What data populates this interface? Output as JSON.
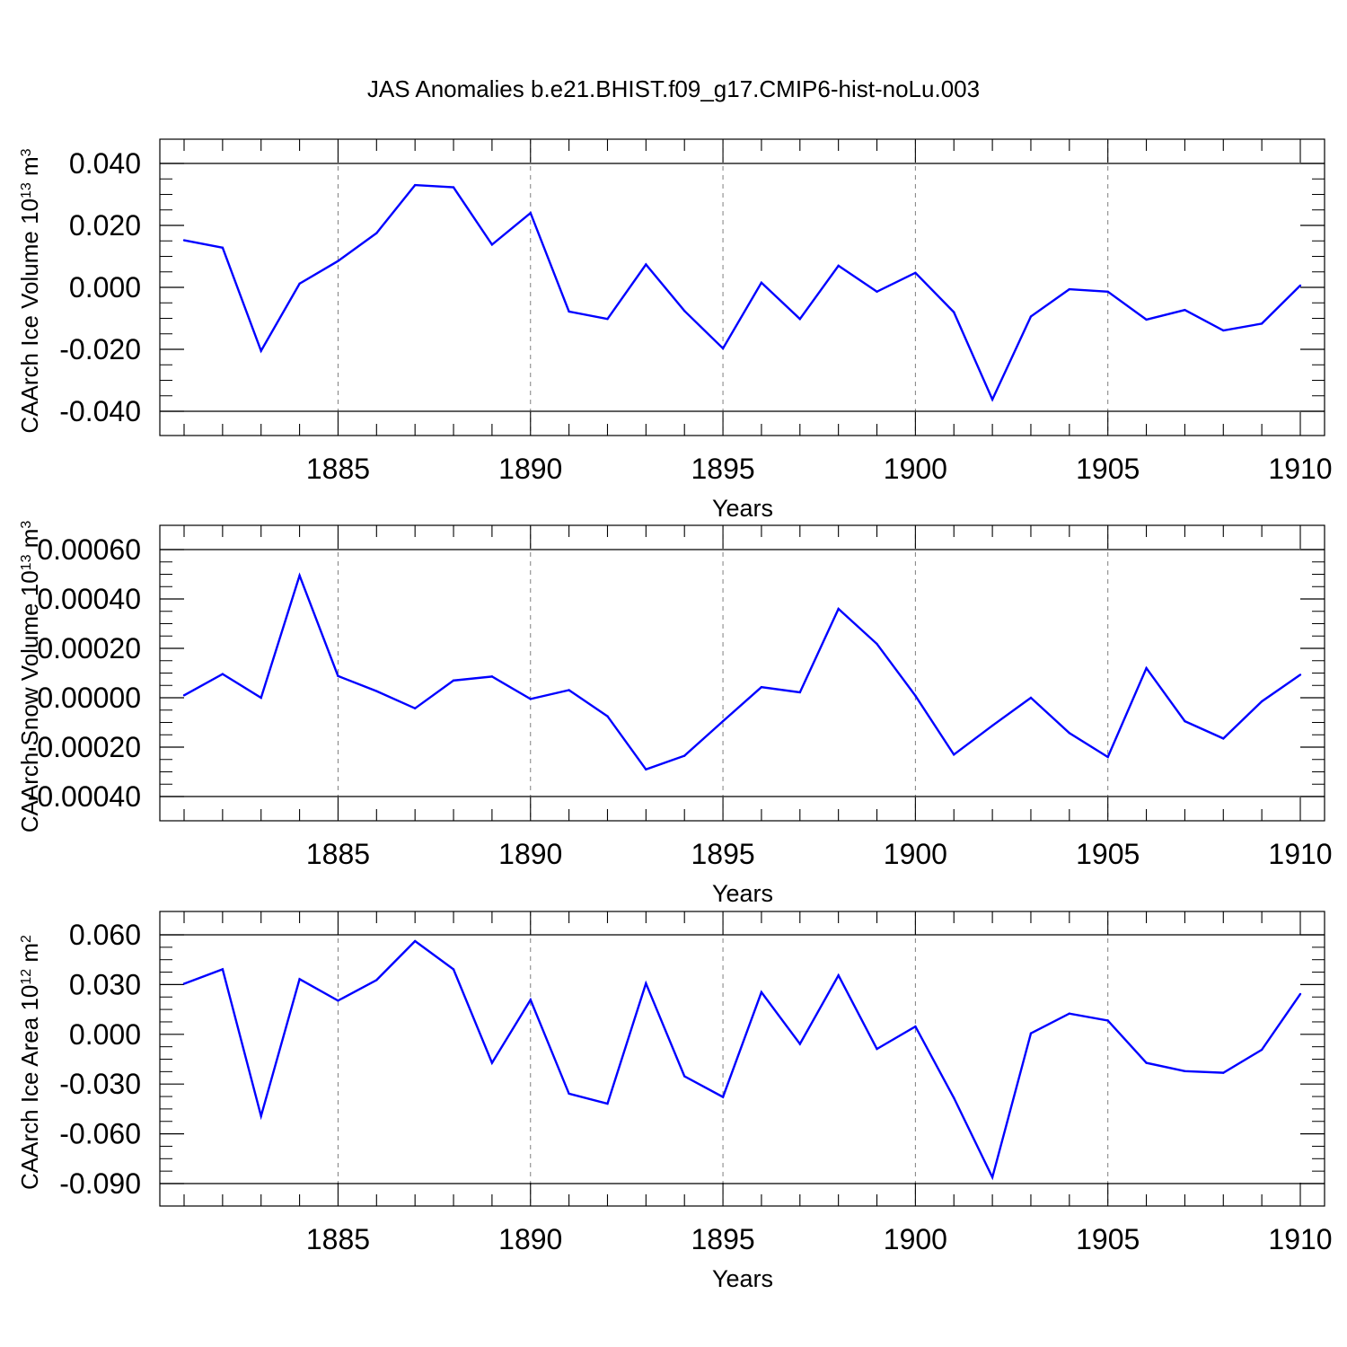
{
  "figure": {
    "title": "JAS Anomalies b.e21.BHIST.f09_g17.CMIP6-hist-noLu.003"
  },
  "colors": {
    "series": "#0000ff",
    "axis": "#000000",
    "grid": "#7f7f7f"
  },
  "chart_data": [
    {
      "type": "line",
      "ylabel": "CAArch Ice Volume 10",
      "ylabel_sup": "13",
      "ylabel_unit": " m",
      "ylabel_unit_sup": "3",
      "xlabel": "Years",
      "xlim": [
        1881,
        1910
      ],
      "ylim": [
        -0.04,
        0.04
      ],
      "x_ticks": [
        1885,
        1890,
        1895,
        1900,
        1905,
        1910
      ],
      "x_tick_labels": [
        "1885",
        "1890",
        "1895",
        "1900",
        "1905",
        "1910"
      ],
      "y_ticks": [
        -0.04,
        -0.02,
        0.0,
        0.02,
        0.04
      ],
      "y_tick_labels": [
        "-0.040",
        "-0.020",
        "0.000",
        "0.020",
        "0.040"
      ],
      "grid": "vertical dashed at major x ticks",
      "x": [
        1881,
        1882,
        1883,
        1884,
        1885,
        1886,
        1887,
        1888,
        1889,
        1890,
        1891,
        1892,
        1893,
        1894,
        1895,
        1896,
        1897,
        1898,
        1899,
        1900,
        1901,
        1902,
        1903,
        1904,
        1905,
        1906,
        1907,
        1908,
        1909,
        1910
      ],
      "values": [
        0.0152,
        0.0128,
        -0.0205,
        0.0012,
        0.0085,
        0.0175,
        0.033,
        0.0323,
        0.0138,
        0.024,
        -0.0078,
        -0.0102,
        0.0074,
        -0.0076,
        -0.0197,
        0.0015,
        -0.0102,
        0.007,
        -0.0014,
        0.0047,
        -0.008,
        -0.0362,
        -0.0094,
        -0.0006,
        -0.0014,
        -0.0104,
        -0.0073,
        -0.0139,
        -0.0117,
        0.0006
      ]
    },
    {
      "type": "line",
      "ylabel": "CAArch Snow Volume 10",
      "ylabel_sup": "13",
      "ylabel_unit": " m",
      "ylabel_unit_sup": "3",
      "xlabel": "Years",
      "xlim": [
        1881,
        1910
      ],
      "ylim": [
        -0.0004,
        0.0006
      ],
      "x_ticks": [
        1885,
        1890,
        1895,
        1900,
        1905,
        1910
      ],
      "x_tick_labels": [
        "1885",
        "1890",
        "1895",
        "1900",
        "1905",
        "1910"
      ],
      "y_ticks": [
        -0.0004,
        -0.0002,
        0.0,
        0.0002,
        0.0004,
        0.0006
      ],
      "y_tick_labels": [
        "-0.00040",
        "-0.00020",
        "0.00000",
        "0.00020",
        "0.00040",
        "0.00060"
      ],
      "grid": "vertical dashed at major x ticks",
      "x": [
        1881,
        1882,
        1883,
        1884,
        1885,
        1886,
        1887,
        1888,
        1889,
        1890,
        1891,
        1892,
        1893,
        1894,
        1895,
        1896,
        1897,
        1898,
        1899,
        1900,
        1901,
        1902,
        1903,
        1904,
        1905,
        1906,
        1907,
        1908,
        1909,
        1910
      ],
      "values": [
        1e-05,
        9.6e-05,
        0.0,
        0.000495,
        8.8e-05,
        2.7e-05,
        -4.3e-05,
        7e-05,
        8.6e-05,
        -5e-06,
        3.1e-05,
        -7.5e-05,
        -0.00029,
        -0.000235,
        -9.5e-05,
        4.3e-05,
        2.2e-05,
        0.00036,
        0.000218,
        8e-06,
        -0.00023,
        -0.000113,
        0.0,
        -0.000143,
        -0.00024,
        0.00012,
        -9.5e-05,
        -0.000165,
        -1.5e-05,
        9.3e-05
      ]
    },
    {
      "type": "line",
      "ylabel": "CAArch Ice Area 10",
      "ylabel_sup": "12",
      "ylabel_unit": " m",
      "ylabel_unit_sup": "2",
      "xlabel": "Years",
      "xlim": [
        1881,
        1910
      ],
      "ylim": [
        -0.09,
        0.06
      ],
      "x_ticks": [
        1885,
        1890,
        1895,
        1900,
        1905,
        1910
      ],
      "x_tick_labels": [
        "1885",
        "1890",
        "1895",
        "1900",
        "1905",
        "1910"
      ],
      "y_ticks": [
        -0.09,
        -0.06,
        -0.03,
        0.0,
        0.03,
        0.06
      ],
      "y_tick_labels": [
        "-0.090",
        "-0.060",
        "-0.030",
        "0.000",
        "0.030",
        "0.060"
      ],
      "grid": "vertical dashed at major x ticks",
      "x": [
        1881,
        1882,
        1883,
        1884,
        1885,
        1886,
        1887,
        1888,
        1889,
        1890,
        1891,
        1892,
        1893,
        1894,
        1895,
        1896,
        1897,
        1898,
        1899,
        1900,
        1901,
        1902,
        1903,
        1904,
        1905,
        1906,
        1907,
        1908,
        1909,
        1910
      ],
      "values": [
        0.0305,
        0.0392,
        -0.0493,
        0.0333,
        0.0203,
        0.0327,
        0.0562,
        0.0392,
        -0.0172,
        0.0208,
        -0.0358,
        -0.0418,
        0.0307,
        -0.0253,
        -0.0378,
        0.0254,
        -0.0058,
        0.0355,
        -0.0088,
        0.0047,
        -0.0383,
        -0.0862,
        0.0006,
        0.0125,
        0.0083,
        -0.0172,
        -0.0222,
        -0.0232,
        -0.0093,
        0.0243
      ]
    }
  ]
}
